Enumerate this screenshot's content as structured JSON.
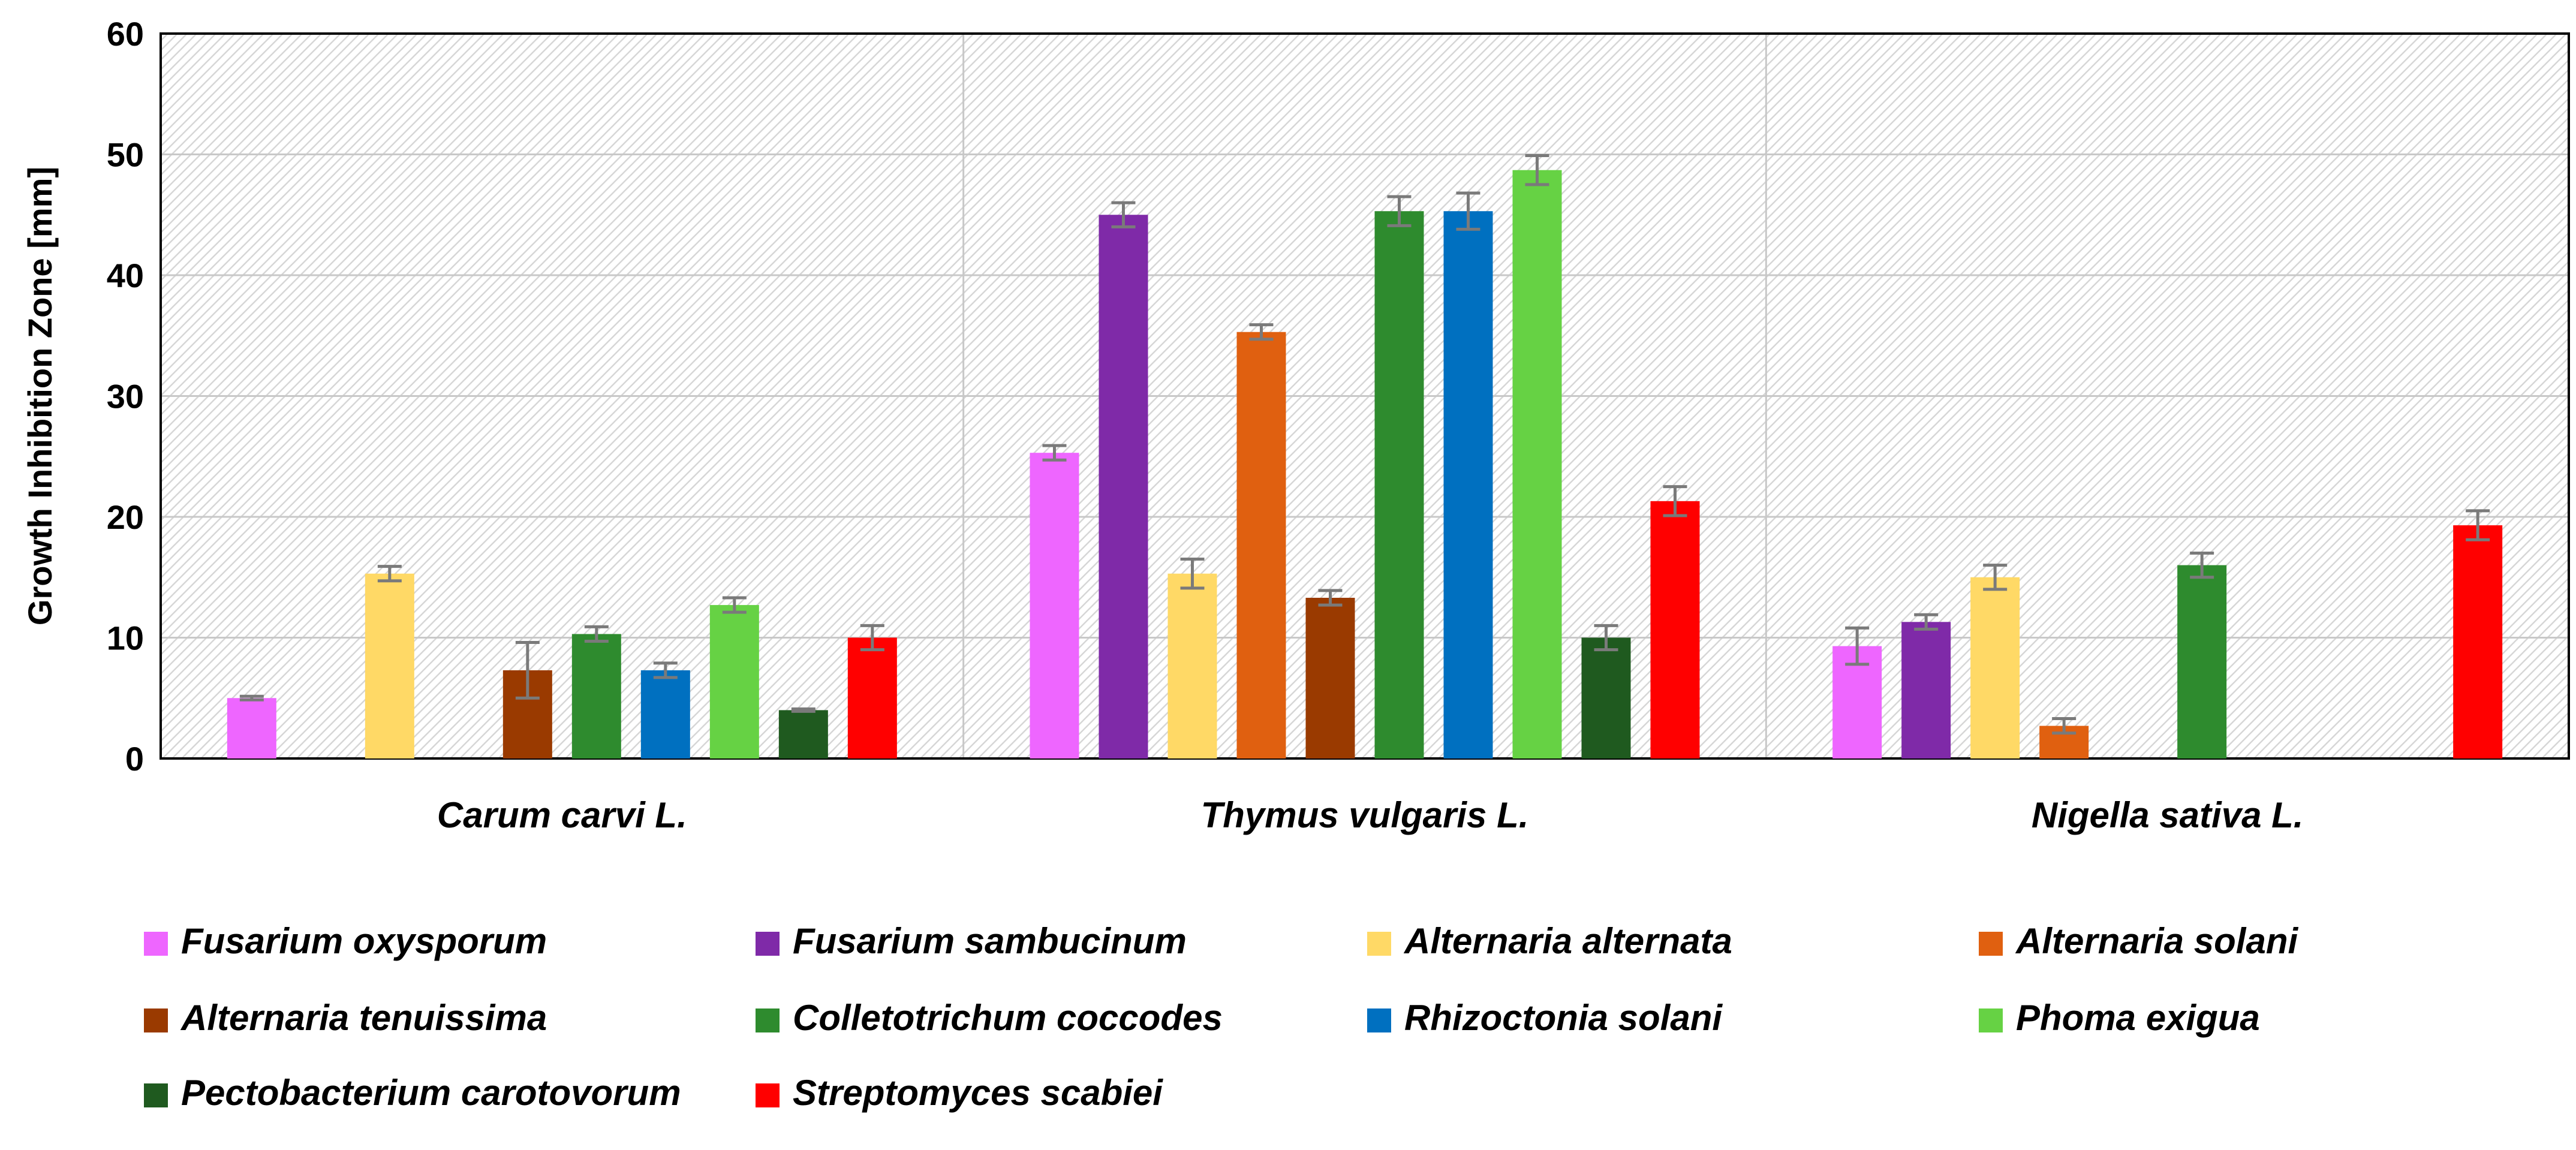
{
  "chart_data": {
    "type": "bar",
    "title": "",
    "xlabel": "",
    "ylabel": "Growth Inhibition Zone [mm]",
    "ylim": [
      0,
      60
    ],
    "yticks": [
      "0",
      "10",
      "20",
      "30",
      "40",
      "50",
      "60"
    ],
    "grid": true,
    "legend_position": "bottom",
    "categories": [
      "Carum carvi L.",
      "Thymus vulgaris L.",
      "Nigella sativa L."
    ],
    "series": [
      {
        "name": "Fusarium oxysporum",
        "color": "#EE66FF",
        "values": [
          5.0,
          25.3,
          9.3
        ],
        "errors": [
          0.15,
          0.6,
          1.5
        ]
      },
      {
        "name": "Fusarium sambucinum",
        "color": "#7F2AA8",
        "values": [
          0,
          45.0,
          11.3
        ],
        "errors": [
          0,
          1.0,
          0.6
        ]
      },
      {
        "name": "Alternaria alternata",
        "color": "#FFD966",
        "values": [
          15.3,
          15.3,
          15.0
        ],
        "errors": [
          0.6,
          1.2,
          1.0
        ]
      },
      {
        "name": "Alternaria solani",
        "color": "#E06010",
        "values": [
          0,
          35.3,
          2.7
        ],
        "errors": [
          0,
          0.6,
          0.6
        ]
      },
      {
        "name": "Alternaria tenuissima",
        "color": "#9A3A00",
        "values": [
          7.3,
          13.3,
          0
        ],
        "errors": [
          2.3,
          0.6,
          0
        ]
      },
      {
        "name": "Colletotrichum coccodes",
        "color": "#2E8B2E",
        "values": [
          10.3,
          45.3,
          16.0
        ],
        "errors": [
          0.6,
          1.2,
          1.0
        ]
      },
      {
        "name": "Rhizoctonia solani",
        "color": "#0070C0",
        "values": [
          7.3,
          45.3,
          0
        ],
        "errors": [
          0.6,
          1.5,
          0
        ]
      },
      {
        "name": "Phoma exigua",
        "color": "#66D244",
        "values": [
          12.7,
          48.7,
          0
        ],
        "errors": [
          0.6,
          1.2,
          0
        ]
      },
      {
        "name": "Pectobacterium carotovorum",
        "color": "#1F5A1F",
        "values": [
          4.0,
          10.0,
          0
        ],
        "errors": [
          0.1,
          1.0,
          0
        ]
      },
      {
        "name": "Streptomyces scabiei",
        "color": "#FF0000",
        "values": [
          10.0,
          21.3,
          19.3
        ],
        "errors": [
          1.0,
          1.2,
          1.2
        ]
      }
    ]
  }
}
